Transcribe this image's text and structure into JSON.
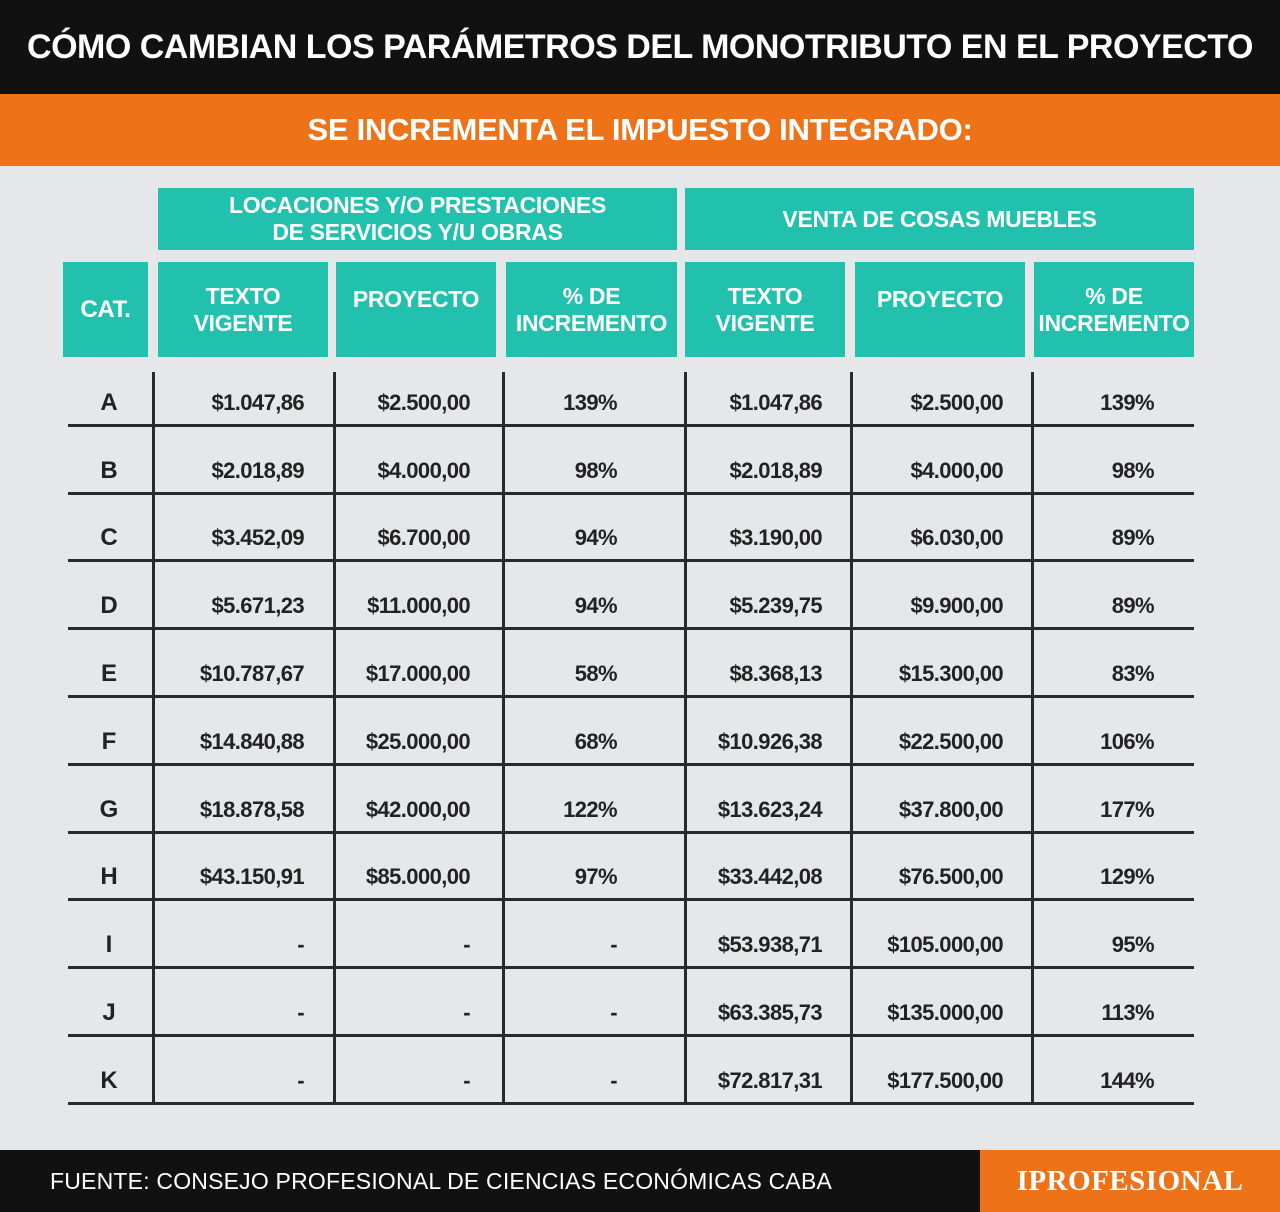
{
  "title": "CÓMO CAMBIAN LOS PARÁMETROS DEL MONOTRIBUTO EN EL PROYECTO",
  "subtitle": "SE INCREMENTA EL IMPUESTO INTEGRADO:",
  "groups": {
    "servicios": "LOCACIONES Y/O PRESTACIONES\nDE SERVICIOS Y/U OBRAS",
    "muebles": "VENTA DE COSAS MUEBLES"
  },
  "columns": {
    "cat": "CAT.",
    "texto_vigente": "TEXTO\nVIGENTE",
    "proyecto": "PROYECTO",
    "incremento": "% DE\nINCREMENTO"
  },
  "chart_data": {
    "type": "table",
    "title": "CÓMO CAMBIAN LOS PARÁMETROS DEL MONOTRIBUTO EN EL PROYECTO",
    "subtitle": "SE INCREMENTA EL IMPUESTO INTEGRADO:",
    "rows": [
      {
        "cat": "A",
        "serv_vigente": "$1.047,86",
        "serv_proyecto": "$2.500,00",
        "serv_inc": "139%",
        "mueb_vigente": "$1.047,86",
        "mueb_proyecto": "$2.500,00",
        "mueb_inc": "139%"
      },
      {
        "cat": "B",
        "serv_vigente": "$2.018,89",
        "serv_proyecto": "$4.000,00",
        "serv_inc": "98%",
        "mueb_vigente": "$2.018,89",
        "mueb_proyecto": "$4.000,00",
        "mueb_inc": "98%"
      },
      {
        "cat": "C",
        "serv_vigente": "$3.452,09",
        "serv_proyecto": "$6.700,00",
        "serv_inc": "94%",
        "mueb_vigente": "$3.190,00",
        "mueb_proyecto": "$6.030,00",
        "mueb_inc": "89%"
      },
      {
        "cat": "D",
        "serv_vigente": "$5.671,23",
        "serv_proyecto": "$11.000,00",
        "serv_inc": "94%",
        "mueb_vigente": "$5.239,75",
        "mueb_proyecto": "$9.900,00",
        "mueb_inc": "89%"
      },
      {
        "cat": "E",
        "serv_vigente": "$10.787,67",
        "serv_proyecto": "$17.000,00",
        "serv_inc": "58%",
        "mueb_vigente": "$8.368,13",
        "mueb_proyecto": "$15.300,00",
        "mueb_inc": "83%"
      },
      {
        "cat": "F",
        "serv_vigente": "$14.840,88",
        "serv_proyecto": "$25.000,00",
        "serv_inc": "68%",
        "mueb_vigente": "$10.926,38",
        "mueb_proyecto": "$22.500,00",
        "mueb_inc": "106%"
      },
      {
        "cat": "G",
        "serv_vigente": "$18.878,58",
        "serv_proyecto": "$42.000,00",
        "serv_inc": "122%",
        "mueb_vigente": "$13.623,24",
        "mueb_proyecto": "$37.800,00",
        "mueb_inc": "177%"
      },
      {
        "cat": "H",
        "serv_vigente": "$43.150,91",
        "serv_proyecto": "$85.000,00",
        "serv_inc": "97%",
        "mueb_vigente": "$33.442,08",
        "mueb_proyecto": "$76.500,00",
        "mueb_inc": "129%"
      },
      {
        "cat": "I",
        "serv_vigente": "-",
        "serv_proyecto": "-",
        "serv_inc": "-",
        "mueb_vigente": "$53.938,71",
        "mueb_proyecto": "$105.000,00",
        "mueb_inc": "95%"
      },
      {
        "cat": "J",
        "serv_vigente": "-",
        "serv_proyecto": "-",
        "serv_inc": "-",
        "mueb_vigente": "$63.385,73",
        "mueb_proyecto": "$135.000,00",
        "mueb_inc": "113%"
      },
      {
        "cat": "K",
        "serv_vigente": "-",
        "serv_proyecto": "-",
        "serv_inc": "-",
        "mueb_vigente": "$72.817,31",
        "mueb_proyecto": "$177.500,00",
        "mueb_inc": "144%"
      }
    ]
  },
  "footer": {
    "source": "FUENTE: CONSEJO PROFESIONAL DE CIENCIAS ECONÓMICAS CABA",
    "logo": "IPROFESIONAL"
  },
  "colors": {
    "title_bg": "#111111",
    "subtitle_bg": "#ee7318",
    "header_teal": "#22c1ad",
    "background": "#e6e7e9"
  }
}
